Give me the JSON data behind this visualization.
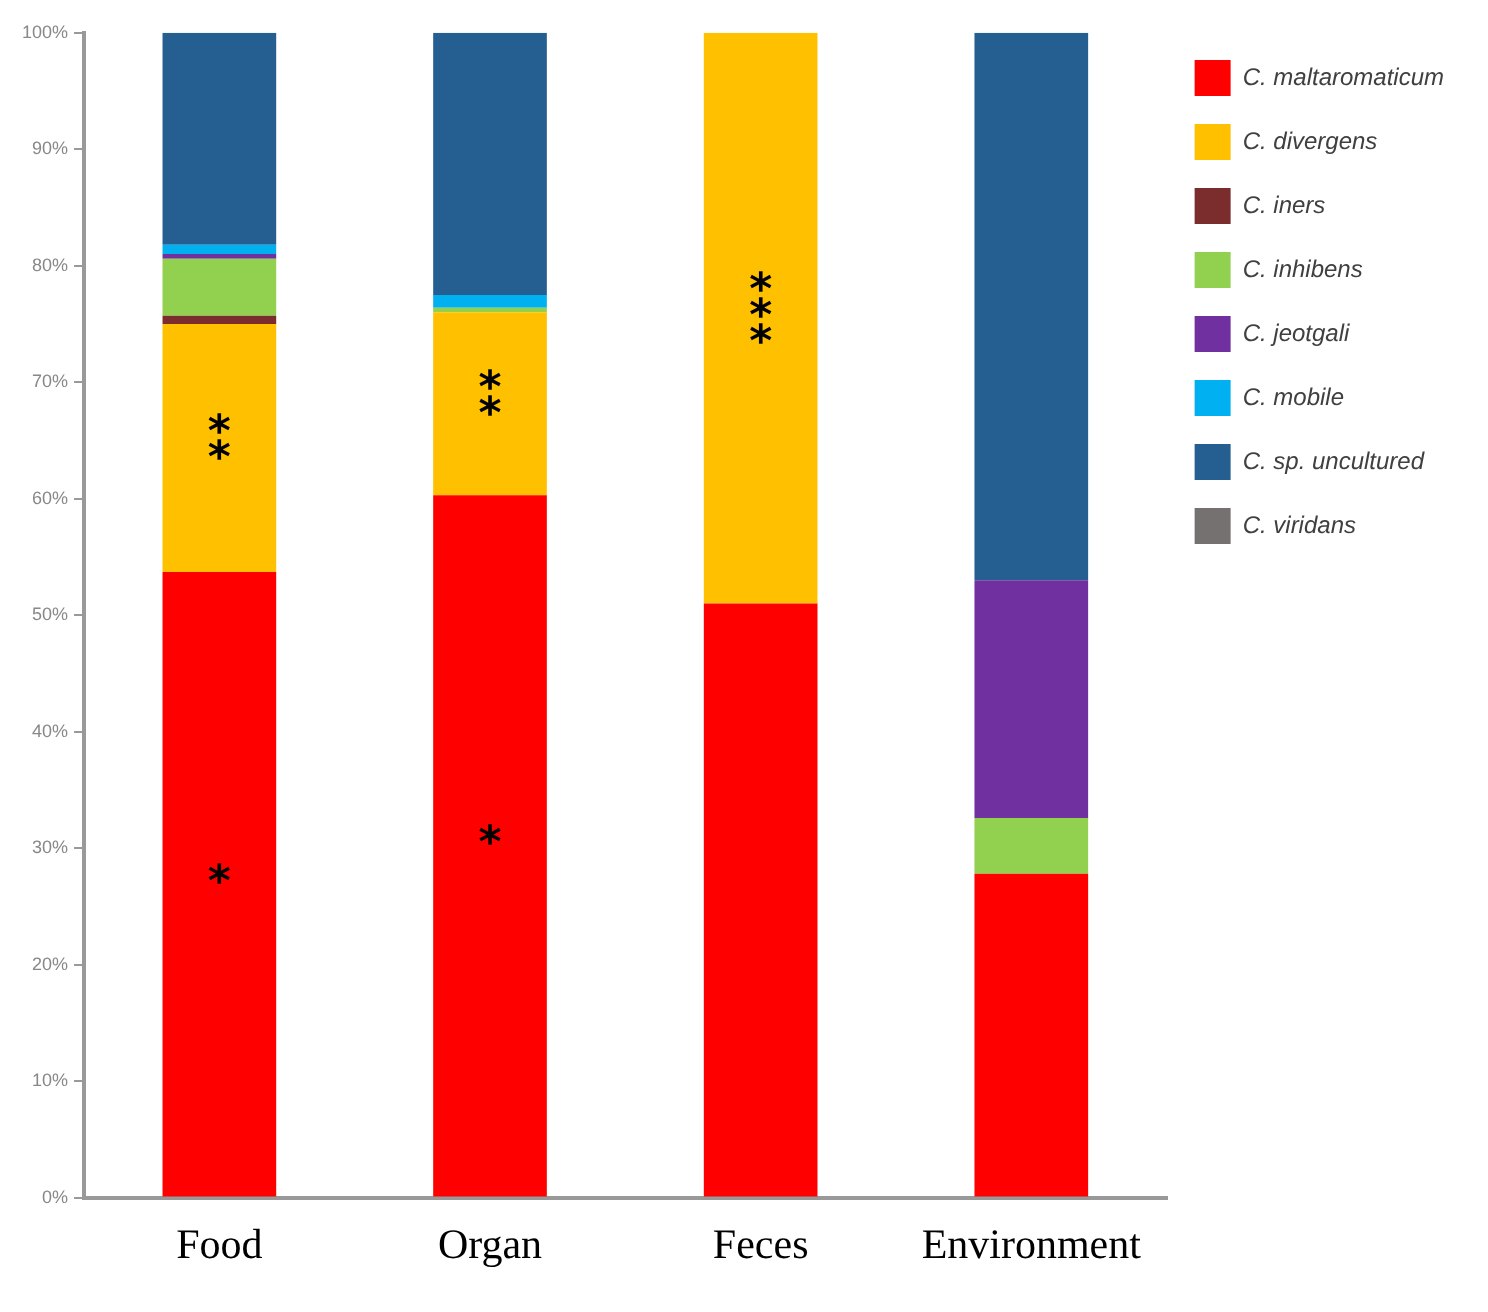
{
  "chart_data": {
    "type": "bar",
    "stacked": true,
    "categories": [
      "Food",
      "Organ",
      "Feces",
      "Environment"
    ],
    "series": [
      {
        "name": "C. maltaromaticum",
        "color": "#ff0000",
        "values": [
          53.7,
          60.3,
          51,
          27.8
        ]
      },
      {
        "name": "C. divergens",
        "color": "#ffc000",
        "values": [
          21.3,
          15.7,
          49,
          0
        ]
      },
      {
        "name": "C. iners",
        "color": "#7b2c2c",
        "values": [
          0.7,
          0,
          0,
          0
        ]
      },
      {
        "name": "C. inhibens",
        "color": "#92d050",
        "values": [
          4.9,
          0.4,
          0,
          4.8
        ]
      },
      {
        "name": "C. jeotgali",
        "color": "#7030a0",
        "values": [
          0.4,
          0,
          0,
          20.4
        ]
      },
      {
        "name": "C. mobile",
        "color": "#00b0f0",
        "values": [
          0.8,
          1.1,
          0,
          0
        ]
      },
      {
        "name": "C. sp. uncultured",
        "color": "#255e91",
        "values": [
          18.2,
          22.5,
          0,
          47
        ]
      },
      {
        "name": "C. viridans",
        "color": "#767171",
        "values": [
          0,
          0,
          0,
          0
        ]
      }
    ],
    "ylim": [
      0,
      100
    ],
    "yticks": [
      {
        "value": 0,
        "label": "0%"
      },
      {
        "value": 10,
        "label": "10%"
      },
      {
        "value": 20,
        "label": "20%"
      },
      {
        "value": 30,
        "label": "30%"
      },
      {
        "value": 40,
        "label": "40%"
      },
      {
        "value": 50,
        "label": "50%"
      },
      {
        "value": 60,
        "label": "60%"
      },
      {
        "value": 70,
        "label": "70%"
      },
      {
        "value": 80,
        "label": "80%"
      },
      {
        "value": 90,
        "label": "90%"
      },
      {
        "value": 100,
        "label": "100%"
      }
    ],
    "grid": false,
    "legend": "top right",
    "annotations": [
      "*",
      "**",
      "*",
      "**",
      "***"
    ]
  }
}
